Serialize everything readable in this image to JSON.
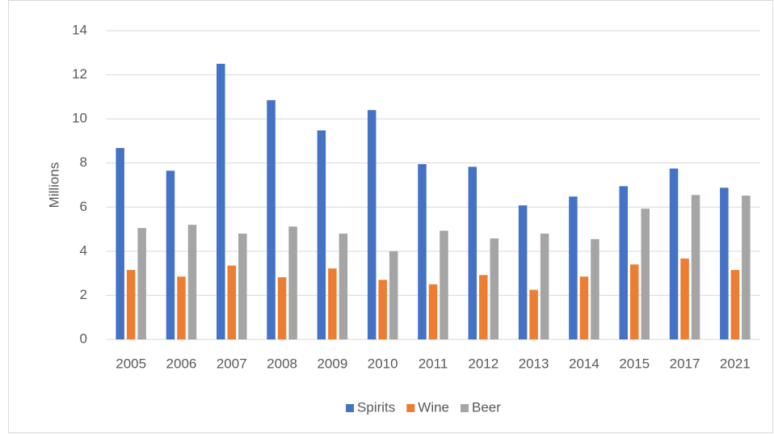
{
  "chart_data": {
    "type": "bar",
    "y_label": "Millions",
    "categories": [
      "2005",
      "2006",
      "2007",
      "2008",
      "2009",
      "2010",
      "2011",
      "2012",
      "2013",
      "2014",
      "2015",
      "2017",
      "2021"
    ],
    "series": [
      {
        "name": "Spirits",
        "color": "#4472c4",
        "values": [
          8.68,
          7.65,
          12.5,
          10.85,
          9.48,
          10.4,
          7.95,
          7.83,
          6.08,
          6.48,
          6.95,
          7.75,
          6.88
        ]
      },
      {
        "name": "Wine",
        "color": "#ed7d31",
        "values": [
          3.15,
          2.85,
          3.35,
          2.82,
          3.22,
          2.7,
          2.5,
          2.92,
          2.25,
          2.85,
          3.4,
          3.67,
          3.15
        ]
      },
      {
        "name": "Beer",
        "color": "#a5a5a5",
        "values": [
          5.05,
          5.2,
          4.8,
          5.12,
          4.8,
          4.0,
          4.93,
          4.58,
          4.8,
          4.55,
          5.93,
          6.55,
          6.52
        ]
      }
    ],
    "ylim": [
      0,
      14
    ],
    "yticks": [
      0,
      2,
      4,
      6,
      8,
      10,
      12,
      14
    ],
    "grid": true,
    "legend": "bottom"
  }
}
